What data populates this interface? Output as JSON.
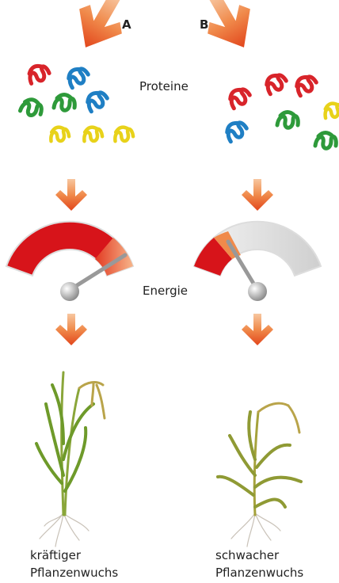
{
  "labels": {
    "a": "A",
    "b": "B"
  },
  "proteins": "Proteine",
  "energy": "Energie",
  "captions": {
    "left": [
      "kräftiger",
      "Pflanzenwuchs"
    ],
    "right": [
      "schwacher",
      "Pflanzenwuchs"
    ]
  }
}
